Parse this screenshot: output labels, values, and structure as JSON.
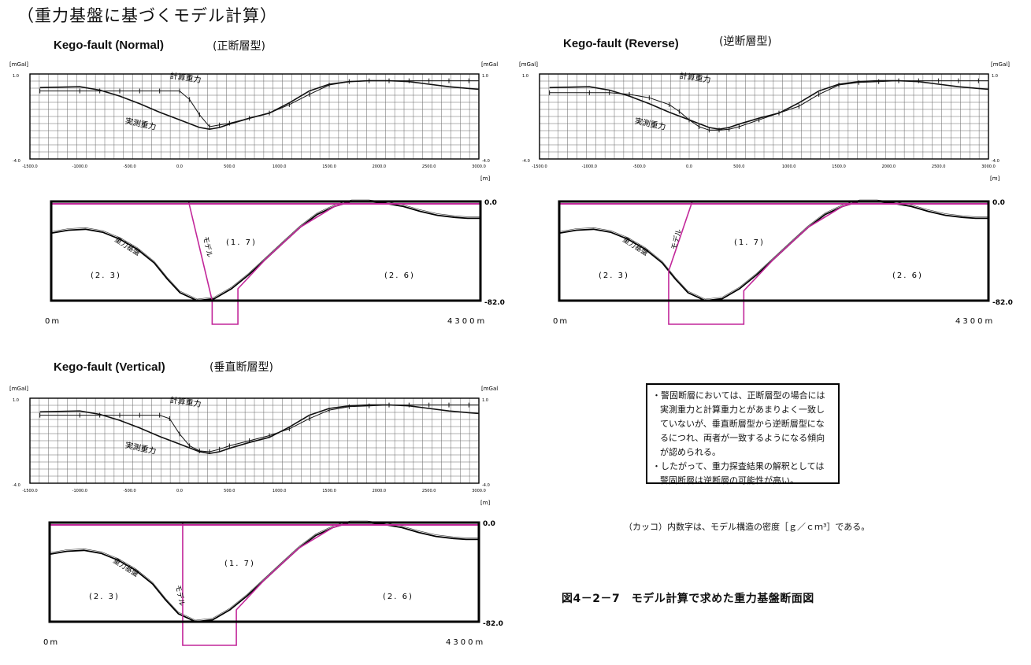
{
  "page_title": "（重力基盤に基づくモデル計算）",
  "note": {
    "lines": [
      "・警固断層においては、正断層型の場合には",
      "実測重力と計算重力とがあまりよく一致し",
      "ていないが、垂直断層型から逆断層型にな",
      "るにつれ、両者が一致するようになる傾向",
      "が認められる。",
      "・したがって、重力探査結果の解釈としては",
      "警固断層は逆断層の可能性が高い。"
    ]
  },
  "density_note": "（カッコ）内数字は、モデル構造の密度［ｇ／ｃｍ³］である。",
  "figure_caption": "図4－2－7　モデル計算で求めた重力基盤断面図",
  "colors": {
    "model": "#c2279a",
    "line": "#111111",
    "grid": "#666666"
  },
  "chart_data": [
    {
      "id": "normal",
      "title": "Kego-fault (Normal)",
      "subtitle": "(正断層型)",
      "gravity": {
        "type": "line",
        "ylabel_left": "[mGal]",
        "ylabel_right": "[mGal]",
        "xlabel": "[m]",
        "y_ticks": [
          "1.0",
          "-4.0"
        ],
        "ylim": [
          -4.0,
          1.0
        ],
        "x_ticks": [
          "-1500.0",
          "-1000.0",
          "-500.0",
          "0.0",
          "500.0",
          "1000.0",
          "1500.0",
          "2000.0",
          "2500.0",
          "3000.0"
        ],
        "xlim": [
          -1500,
          3000
        ],
        "label_calc": "計算重力",
        "label_obs": "実測重力",
        "series": [
          {
            "name": "計算重力",
            "x": [
              -1400,
              -1000,
              -800,
              -600,
              -400,
              -200,
              0,
              100,
              200,
              300,
              400,
              500,
              700,
              900,
              1100,
              1300,
              1500,
              1700,
              1900,
              2100,
              2300,
              2500,
              2700,
              2900,
              3000
            ],
            "y": [
              0,
              0,
              0,
              0,
              0,
              0,
              0,
              -0.5,
              -1.4,
              -2.1,
              -2.0,
              -1.9,
              -1.6,
              -1.3,
              -0.8,
              -0.2,
              0.35,
              0.55,
              0.6,
              0.6,
              0.6,
              0.6,
              0.6,
              0.6,
              0.6
            ]
          },
          {
            "name": "実測重力",
            "x": [
              -1400,
              -1000,
              -800,
              -600,
              -400,
              -200,
              0,
              200,
              300,
              400,
              500,
              700,
              900,
              1100,
              1300,
              1500,
              1700,
              1900,
              2100,
              2300,
              2500,
              2700,
              2900,
              3000
            ],
            "y": [
              0.2,
              0.25,
              0.05,
              -0.3,
              -0.75,
              -1.25,
              -1.7,
              -2.15,
              -2.25,
              -2.15,
              -1.95,
              -1.6,
              -1.3,
              -0.7,
              0,
              0.4,
              0.55,
              0.6,
              0.6,
              0.55,
              0.4,
              0.25,
              0.15,
              0.1
            ]
          }
        ]
      },
      "section": {
        "depth_top": "0.0",
        "depth_bottom": "-82.0",
        "x_left": "0m",
        "x_right": "4300m",
        "densities": [
          "(2. 3)",
          "(1. 7)",
          "(2. 6)"
        ],
        "label_basement": "重力基盤",
        "label_model": "モデル"
      }
    },
    {
      "id": "reverse",
      "title": "Kego-fault (Reverse)",
      "subtitle": "(逆断層型)",
      "gravity": {
        "type": "line",
        "ylabel_left": "[mGal]",
        "ylabel_right": "[mGal]",
        "xlabel": "[m]",
        "y_ticks": [
          "1.0",
          "-4.0"
        ],
        "ylim": [
          -4.0,
          1.0
        ],
        "x_ticks": [
          "-1500.0",
          "-1000.0",
          "-500.0",
          "0.0",
          "500.0",
          "1000.0",
          "1500.0",
          "2000.0",
          "2500.0",
          "3000.0"
        ],
        "xlim": [
          -1500,
          3000
        ],
        "label_calc": "計算重力",
        "label_obs": "実測重力",
        "series": [
          {
            "name": "計算重力",
            "x": [
              -1400,
              -1000,
              -800,
              -600,
              -400,
              -200,
              -100,
              0,
              100,
              200,
              300,
              400,
              500,
              700,
              900,
              1100,
              1300,
              1500,
              1700,
              1900,
              2100,
              2300,
              2500,
              2700,
              2900,
              3000
            ],
            "y": [
              -0.1,
              -0.1,
              -0.1,
              -0.2,
              -0.4,
              -0.8,
              -1.2,
              -1.7,
              -2.1,
              -2.3,
              -2.3,
              -2.25,
              -2.1,
              -1.7,
              -1.3,
              -0.9,
              -0.2,
              0.35,
              0.5,
              0.55,
              0.6,
              0.6,
              0.6,
              0.6,
              0.6,
              0.6
            ]
          },
          {
            "name": "実測重力",
            "x": [
              -1400,
              -1000,
              -800,
              -600,
              -400,
              -200,
              0,
              200,
              300,
              400,
              500,
              700,
              900,
              1100,
              1300,
              1500,
              1700,
              1900,
              2100,
              2300,
              2500,
              2700,
              2900,
              3000
            ],
            "y": [
              0.2,
              0.25,
              0.05,
              -0.3,
              -0.75,
              -1.25,
              -1.7,
              -2.15,
              -2.25,
              -2.15,
              -1.95,
              -1.6,
              -1.3,
              -0.7,
              0,
              0.4,
              0.55,
              0.6,
              0.6,
              0.55,
              0.4,
              0.25,
              0.15,
              0.1
            ]
          }
        ]
      },
      "section": {
        "depth_top": "0.0",
        "depth_bottom": "-82.0",
        "x_left": "0m",
        "x_right": "4300m",
        "densities": [
          "(2. 3)",
          "(1. 7)",
          "(2. 6)"
        ],
        "label_basement": "重力基盤",
        "label_model": "モデル"
      }
    },
    {
      "id": "vertical",
      "title": "Kego-fault (Vertical)",
      "subtitle": "(垂直断層型)",
      "gravity": {
        "type": "line",
        "ylabel_left": "[mGal]",
        "ylabel_right": "[mGal]",
        "xlabel": "[m]",
        "y_ticks": [
          "1.0",
          "-4.0"
        ],
        "ylim": [
          -4.0,
          1.0
        ],
        "x_ticks": [
          "-1500.0",
          "-1000.0",
          "-500.0",
          "0.0",
          "500.0",
          "1000.0",
          "1500.0",
          "2000.0",
          "2500.0",
          "3000.0"
        ],
        "xlim": [
          -1500,
          3000
        ],
        "label_calc": "計算重力",
        "label_obs": "実測重力",
        "series": [
          {
            "name": "計算重力",
            "x": [
              -1400,
              -1000,
              -800,
              -600,
              -400,
              -200,
              -100,
              0,
              100,
              200,
              300,
              400,
              500,
              700,
              900,
              1100,
              1300,
              1500,
              1700,
              1900,
              2100,
              2300,
              2500,
              2700,
              2900,
              3000
            ],
            "y": [
              0,
              0,
              0,
              0,
              0,
              0,
              -0.2,
              -1.1,
              -1.8,
              -2.1,
              -2.15,
              -2.0,
              -1.8,
              -1.5,
              -1.2,
              -0.8,
              -0.2,
              0.3,
              0.5,
              0.55,
              0.6,
              0.6,
              0.6,
              0.6,
              0.6,
              0.6
            ]
          },
          {
            "name": "実測重力",
            "x": [
              -1400,
              -1000,
              -800,
              -600,
              -400,
              -200,
              0,
              200,
              300,
              400,
              500,
              700,
              900,
              1100,
              1300,
              1500,
              1700,
              1900,
              2100,
              2300,
              2500,
              2700,
              2900,
              3000
            ],
            "y": [
              0.2,
              0.25,
              0.05,
              -0.3,
              -0.75,
              -1.25,
              -1.7,
              -2.15,
              -2.25,
              -2.15,
              -1.95,
              -1.6,
              -1.3,
              -0.7,
              0,
              0.4,
              0.55,
              0.6,
              0.6,
              0.55,
              0.4,
              0.25,
              0.15,
              0.1
            ]
          }
        ]
      },
      "section": {
        "depth_top": "0.0",
        "depth_bottom": "-82.0",
        "x_left": "0m",
        "x_right": "4300m",
        "densities": [
          "(2. 3)",
          "(1. 7)",
          "(2. 6)"
        ],
        "label_basement": "重力基盤",
        "label_model": "モデル"
      }
    }
  ]
}
